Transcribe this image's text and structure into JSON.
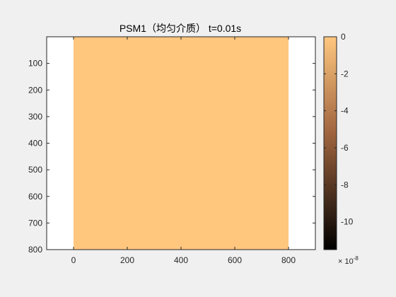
{
  "chart_data": {
    "type": "heatmap",
    "title": "PSM1（均匀介质）  t=0.01s",
    "xlabel": "",
    "ylabel": "",
    "xlim": [
      -100,
      900
    ],
    "ylim": [
      800,
      0
    ],
    "y_reversed": true,
    "x_ticks": [
      0,
      200,
      400,
      600,
      800
    ],
    "y_ticks": [
      100,
      200,
      300,
      400,
      500,
      600,
      700,
      800
    ],
    "image_extent": {
      "x": [
        0,
        800
      ],
      "y": [
        0,
        800
      ]
    },
    "field_value": 0,
    "colormap": "copper",
    "clim": [
      -1.15e-07,
      0
    ],
    "colorbar": {
      "location": "right",
      "ticks": [
        0,
        -2,
        -4,
        -6,
        -8,
        -10
      ],
      "tick_labels": [
        "0",
        "-2",
        "-4",
        "-6",
        "-8",
        "-10"
      ],
      "exponent_base": "× 10",
      "exponent_power": "-8"
    },
    "grid": false
  },
  "colors": {
    "background": "#f0f0f0",
    "axes_background": "#ffffff",
    "field_color": "#ffc67e",
    "copper_top": "#ffc77f",
    "copper_mid": "#a0653f",
    "copper_bottom": "#000000",
    "axis_color": "#262626"
  }
}
